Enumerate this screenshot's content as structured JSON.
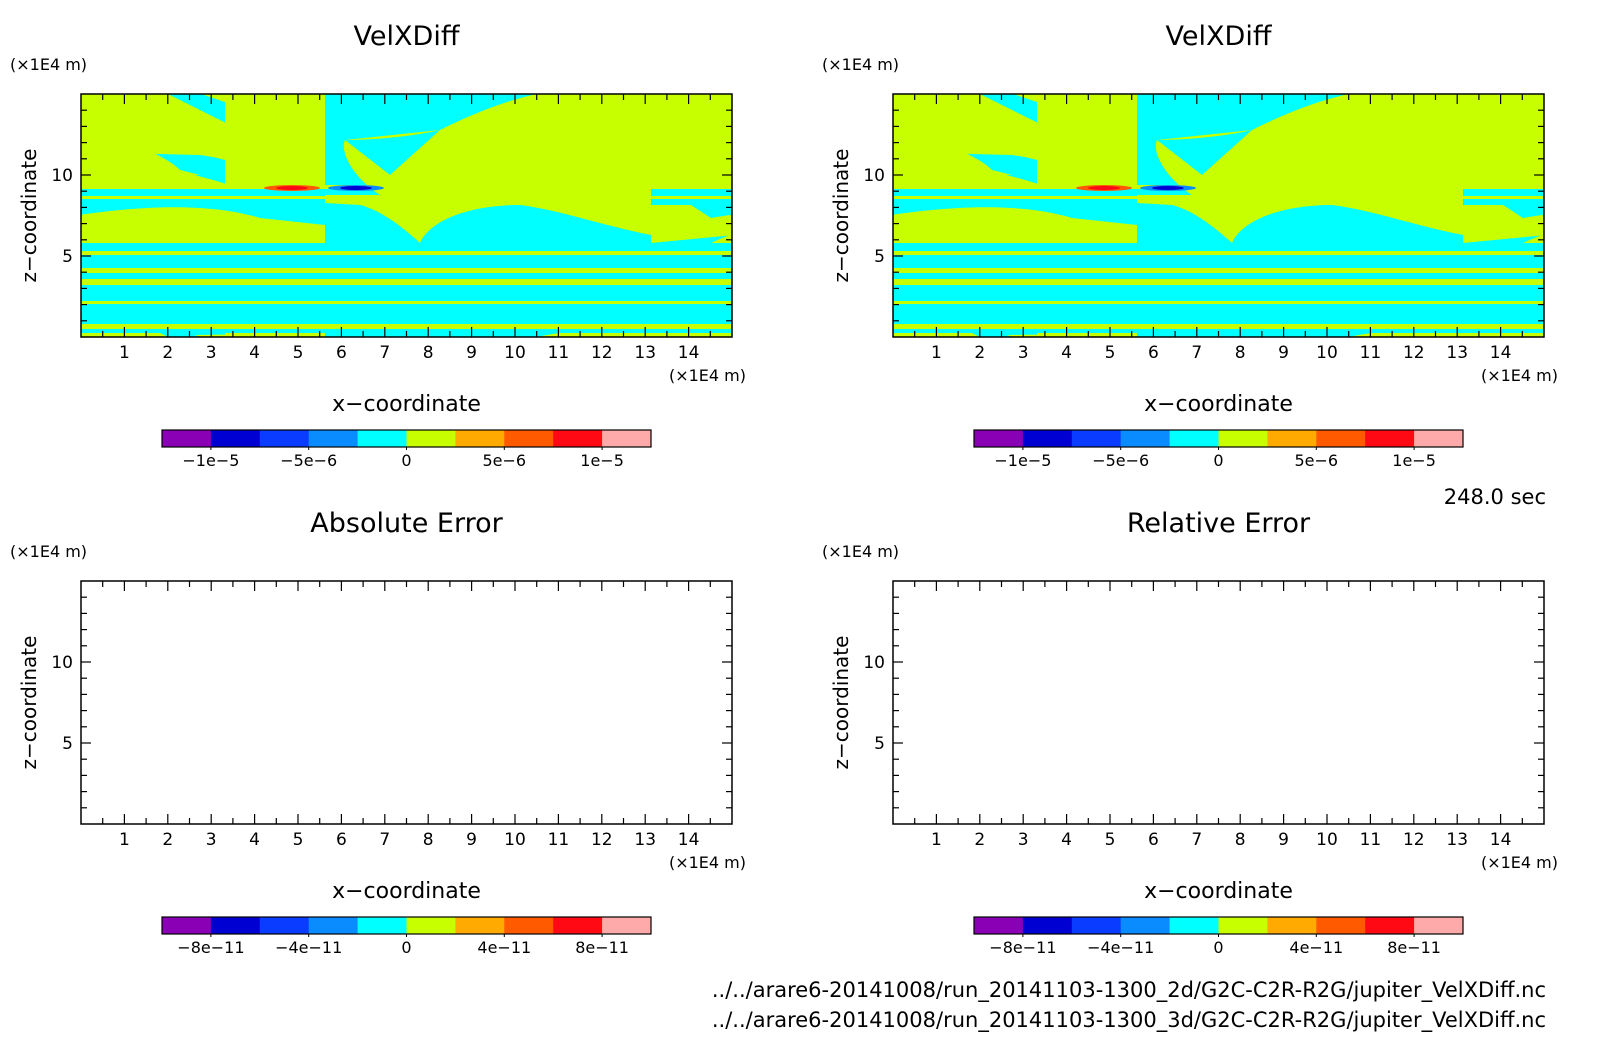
{
  "time_label": "248.0 sec",
  "files": [
    "../../arare6-20141008/run_20141103-1300_2d/G2C-C2R-R2G/jupiter_VelXDiff.nc",
    "../../arare6-20141008/run_20141103-1300_3d/G2C-C2R-R2G/jupiter_VelXDiff.nc"
  ],
  "chart_data": [
    {
      "type": "heatmap",
      "title": "VelXDiff",
      "xlabel": "x−coordinate",
      "ylabel": "z−coordinate",
      "x_unit": "(×1E4 m)",
      "y_unit": "(×1E4 m)",
      "xlim": [
        0,
        15
      ],
      "ylim": [
        0,
        15
      ],
      "x_ticks": [
        1,
        2,
        3,
        4,
        5,
        6,
        7,
        8,
        9,
        10,
        11,
        12,
        13,
        14
      ],
      "y_ticks": [
        5,
        10
      ],
      "colorbar": {
        "colors": [
          "#8a00b4",
          "#0000d2",
          "#0a3cff",
          "#0a8cff",
          "#00ffff",
          "#c8ff00",
          "#ffaa00",
          "#ff5a00",
          "#ff0a14",
          "#ffaaaa"
        ],
        "labels": [
          "−1e−5",
          "−5e−6",
          "0",
          "5e−6",
          "1e−5"
        ],
        "label_positions": [
          1,
          3,
          5,
          7,
          9
        ]
      },
      "field": "filled"
    },
    {
      "type": "heatmap",
      "title": "VelXDiff",
      "xlabel": "x−coordinate",
      "ylabel": "z−coordinate",
      "x_unit": "(×1E4 m)",
      "y_unit": "(×1E4 m)",
      "xlim": [
        0,
        15
      ],
      "ylim": [
        0,
        15
      ],
      "x_ticks": [
        1,
        2,
        3,
        4,
        5,
        6,
        7,
        8,
        9,
        10,
        11,
        12,
        13,
        14
      ],
      "y_ticks": [
        5,
        10
      ],
      "colorbar": {
        "colors": [
          "#8a00b4",
          "#0000d2",
          "#0a3cff",
          "#0a8cff",
          "#00ffff",
          "#c8ff00",
          "#ffaa00",
          "#ff5a00",
          "#ff0a14",
          "#ffaaaa"
        ],
        "labels": [
          "−1e−5",
          "−5e−6",
          "0",
          "5e−6",
          "1e−5"
        ],
        "label_positions": [
          1,
          3,
          5,
          7,
          9
        ]
      },
      "field": "filled"
    },
    {
      "type": "heatmap",
      "title": "Absolute Error",
      "xlabel": "x−coordinate",
      "ylabel": "z−coordinate",
      "x_unit": "(×1E4 m)",
      "y_unit": "(×1E4 m)",
      "xlim": [
        0,
        15
      ],
      "ylim": [
        0,
        15
      ],
      "x_ticks": [
        1,
        2,
        3,
        4,
        5,
        6,
        7,
        8,
        9,
        10,
        11,
        12,
        13,
        14
      ],
      "y_ticks": [
        5,
        10
      ],
      "colorbar": {
        "colors": [
          "#8a00b4",
          "#0000d2",
          "#0a3cff",
          "#0a8cff",
          "#00ffff",
          "#c8ff00",
          "#ffaa00",
          "#ff5a00",
          "#ff0a14",
          "#ffaaaa"
        ],
        "labels": [
          "−8e−11",
          "−4e−11",
          "0",
          "4e−11",
          "8e−11"
        ],
        "label_positions": [
          1,
          3,
          5,
          7,
          9
        ]
      },
      "field": "empty"
    },
    {
      "type": "heatmap",
      "title": "Relative Error",
      "xlabel": "x−coordinate",
      "ylabel": "z−coordinate",
      "x_unit": "(×1E4 m)",
      "y_unit": "(×1E4 m)",
      "xlim": [
        0,
        15
      ],
      "ylim": [
        0,
        15
      ],
      "x_ticks": [
        1,
        2,
        3,
        4,
        5,
        6,
        7,
        8,
        9,
        10,
        11,
        12,
        13,
        14
      ],
      "y_ticks": [
        5,
        10
      ],
      "colorbar": {
        "colors": [
          "#8a00b4",
          "#0000d2",
          "#0a3cff",
          "#0a8cff",
          "#00ffff",
          "#c8ff00",
          "#ffaa00",
          "#ff5a00",
          "#ff0a14",
          "#ffaaaa"
        ],
        "labels": [
          "−8e−11",
          "−4e−11",
          "0",
          "4e−11",
          "8e−11"
        ],
        "label_positions": [
          1,
          3,
          5,
          7,
          9
        ]
      },
      "field": "empty"
    }
  ]
}
